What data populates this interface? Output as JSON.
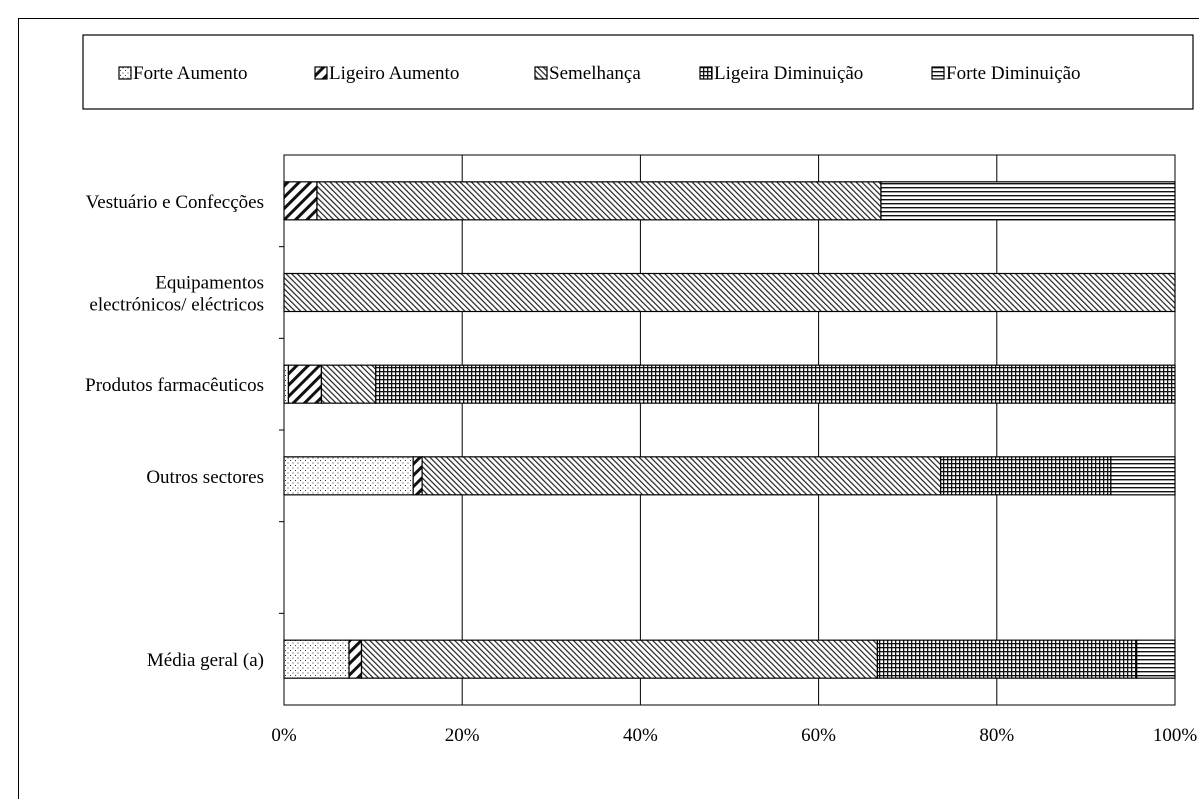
{
  "chart_data": {
    "type": "bar",
    "orientation": "horizontal",
    "stacked": true,
    "normalized_percent": true,
    "title": "",
    "xlabel": "",
    "ylabel": "",
    "xlim": [
      0,
      100
    ],
    "x_ticks": [
      "0%",
      "20%",
      "40%",
      "60%",
      "80%",
      "100%"
    ],
    "legend_position": "top",
    "grid": true,
    "categories": [
      [
        "Vestuário e Confecções"
      ],
      [
        "Equipamentos",
        "electrónicos/ eléctricos"
      ],
      [
        "Produtos farmacêuticos"
      ],
      [
        "Outros sectores"
      ],
      [
        "Média geral (a)"
      ]
    ],
    "category_slots": [
      0,
      1,
      2,
      3,
      5
    ],
    "slot_count": 6,
    "series": [
      {
        "name": "Forte Aumento",
        "pattern": "dots",
        "values": [
          0,
          0,
          0.5,
          14.5,
          7.3
        ]
      },
      {
        "name": "Ligeiro Aumento",
        "pattern": "diag-wide",
        "values": [
          3.7,
          0,
          3.7,
          1.0,
          1.4
        ]
      },
      {
        "name": "Semelhança",
        "pattern": "diag-dense",
        "values": [
          63.3,
          100,
          6.1,
          58.2,
          57.9
        ]
      },
      {
        "name": "Ligeira Diminuição",
        "pattern": "grid",
        "values": [
          0,
          0,
          89.7,
          19.1,
          29.1
        ]
      },
      {
        "name": "Forte Diminuição",
        "pattern": "hlines",
        "values": [
          33.0,
          0,
          0,
          7.2,
          4.3
        ]
      }
    ]
  }
}
